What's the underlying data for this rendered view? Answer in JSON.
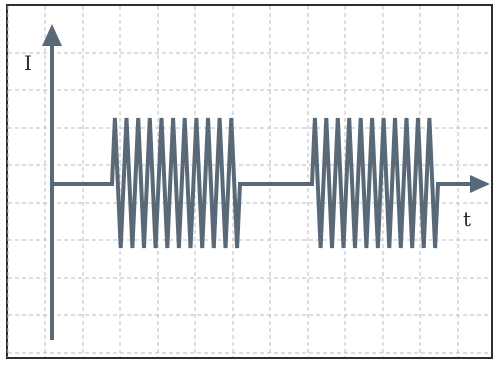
{
  "diagram": {
    "y_axis_label": "I",
    "x_axis_label": "t",
    "colors": {
      "grid": "#bdbdbd",
      "signal": "#5a6978",
      "axis": "#5a6978",
      "frame": "#2f2f2f"
    },
    "grid_lines": "dashed",
    "signal": {
      "shape": "two bursts of high-frequency oscillation separated by flat baseline",
      "bursts": [
        {
          "cycles": 11
        },
        {
          "cycles": 11
        }
      ]
    }
  }
}
